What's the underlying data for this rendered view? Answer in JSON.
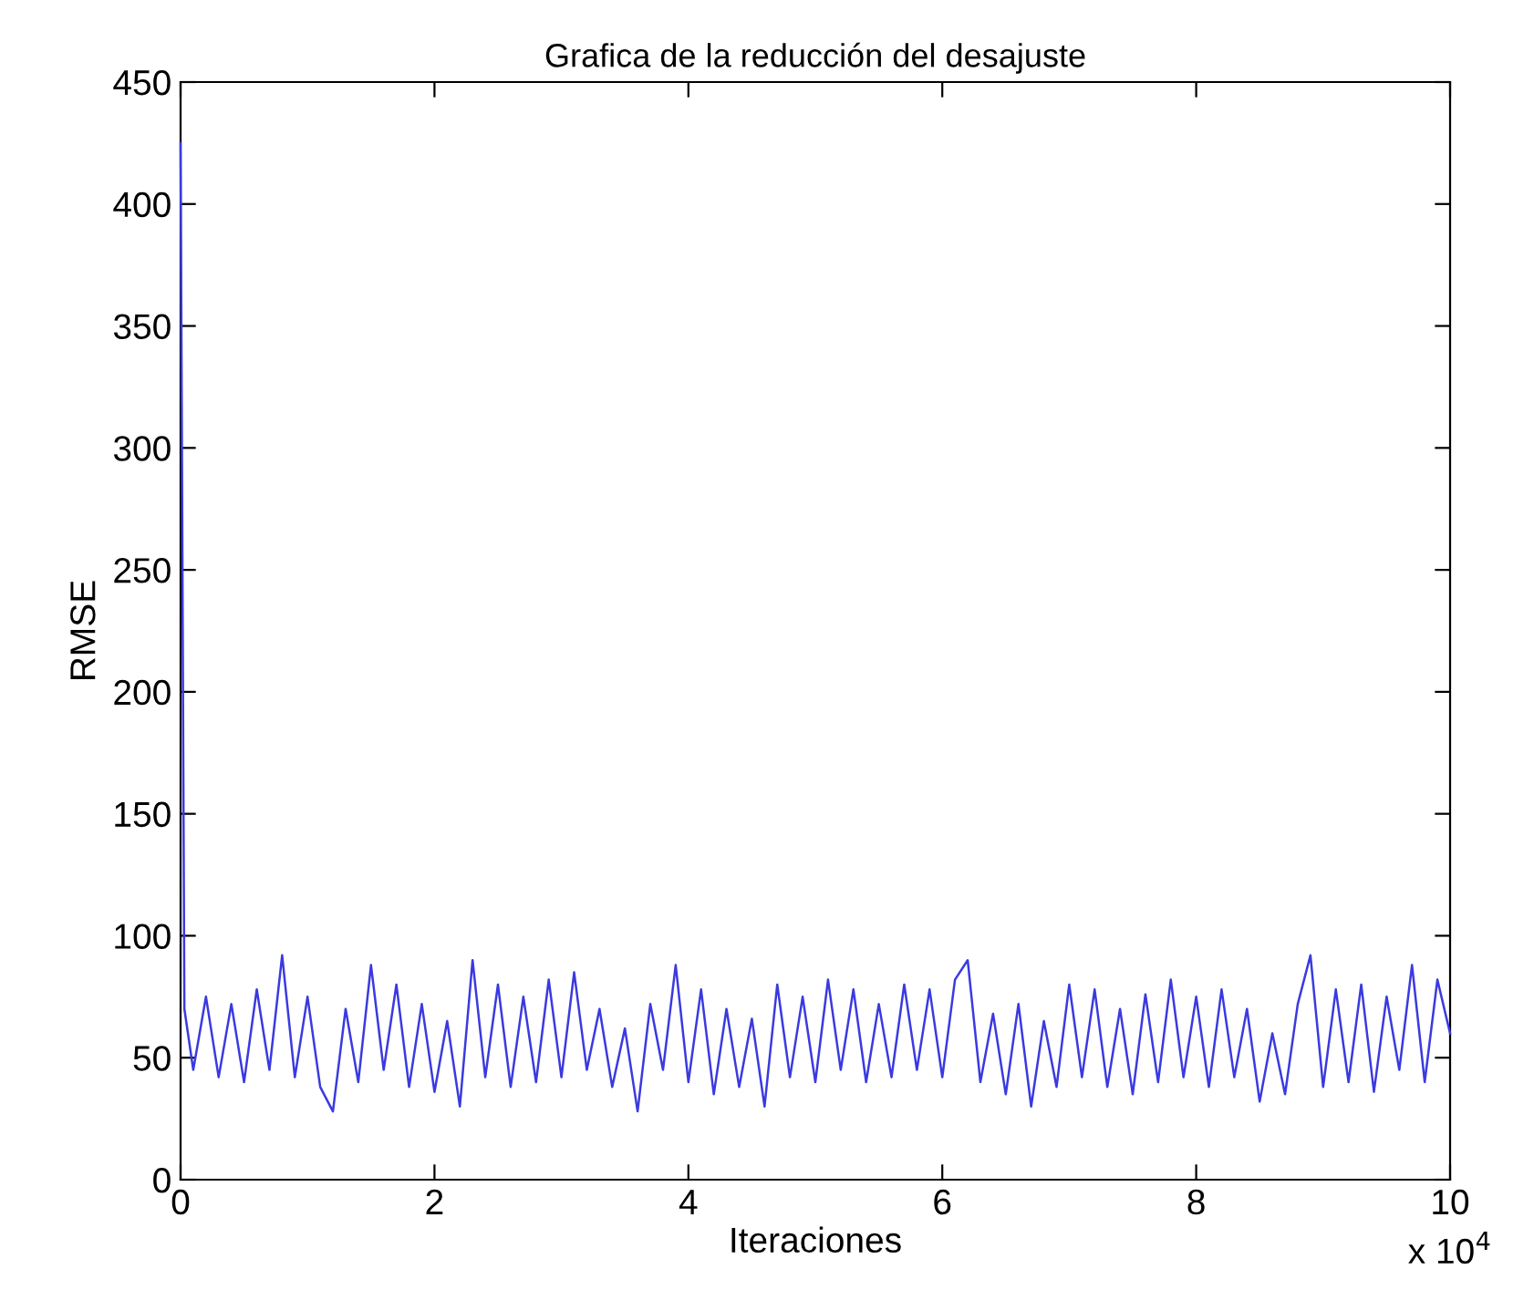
{
  "chart_data": {
    "type": "line",
    "title": "Grafica de la reducción del desajuste",
    "xlabel": "Iteraciones",
    "ylabel": "RMSE",
    "annotations": [
      "x 10$^{4}$"
    ],
    "x": [
      0,
      0.03,
      0.1,
      0.2,
      0.3,
      0.4,
      0.5,
      0.6,
      0.7,
      0.8,
      0.9,
      1.0,
      1.1,
      1.2,
      1.3,
      1.4,
      1.5,
      1.6,
      1.7,
      1.8,
      1.9,
      2.0,
      2.1,
      2.2,
      2.3,
      2.4,
      2.5,
      2.6,
      2.7,
      2.8,
      2.9,
      3.0,
      3.1,
      3.2,
      3.3,
      3.4,
      3.5,
      3.6,
      3.7,
      3.8,
      3.9,
      4.0,
      4.1,
      4.2,
      4.3,
      4.4,
      4.5,
      4.6,
      4.7,
      4.8,
      4.9,
      5.0,
      5.1,
      5.2,
      5.3,
      5.4,
      5.5,
      5.6,
      5.7,
      5.8,
      5.9,
      6.0,
      6.1,
      6.2,
      6.3,
      6.4,
      6.5,
      6.6,
      6.7,
      6.8,
      6.9,
      7.0,
      7.1,
      7.2,
      7.3,
      7.4,
      7.5,
      7.6,
      7.7,
      7.8,
      7.9,
      8.0,
      8.1,
      8.2,
      8.3,
      8.4,
      8.5,
      8.6,
      8.7,
      8.8,
      8.9,
      9.0,
      9.1,
      9.2,
      9.3,
      9.4,
      9.5,
      9.6,
      9.7,
      9.8,
      9.9,
      10.0
    ],
    "series": [
      {
        "color": "#3a3ae0",
        "values": [
          425,
          70,
          45,
          75,
          42,
          72,
          40,
          78,
          45,
          92,
          42,
          75,
          38,
          28,
          70,
          40,
          88,
          45,
          80,
          38,
          72,
          36,
          65,
          30,
          90,
          42,
          80,
          38,
          75,
          40,
          82,
          42,
          85,
          45,
          70,
          38,
          62,
          28,
          72,
          45,
          88,
          40,
          78,
          35,
          70,
          38,
          66,
          30,
          80,
          42,
          75,
          40,
          82,
          45,
          78,
          40,
          72,
          42,
          80,
          45,
          78,
          42,
          82,
          90,
          40,
          68,
          35,
          72,
          30,
          65,
          38,
          80,
          42,
          78,
          38,
          70,
          35,
          76,
          40,
          82,
          42,
          75,
          38,
          78,
          42,
          70,
          32,
          60,
          35,
          72,
          92,
          38,
          78,
          40,
          80,
          36,
          75,
          45,
          88,
          40,
          82,
          60
        ]
      }
    ],
    "xlim": [
      0,
      10
    ],
    "ylim": [
      0,
      450
    ],
    "xticks": [
      0,
      2,
      4,
      6,
      8,
      10
    ],
    "yticks": [
      0,
      50,
      100,
      150,
      200,
      250,
      300,
      350,
      400,
      450
    ],
    "grid": false,
    "legend": false,
    "marker": "none",
    "line_style": "solid"
  }
}
